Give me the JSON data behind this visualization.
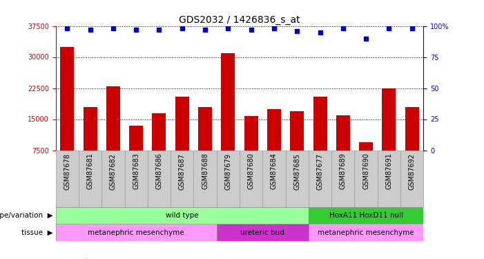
{
  "title": "GDS2032 / 1426836_s_at",
  "samples": [
    "GSM87678",
    "GSM87681",
    "GSM87682",
    "GSM87683",
    "GSM87686",
    "GSM87687",
    "GSM87688",
    "GSM87679",
    "GSM87680",
    "GSM87684",
    "GSM87685",
    "GSM87677",
    "GSM87689",
    "GSM87690",
    "GSM87691",
    "GSM87692"
  ],
  "counts": [
    32500,
    18000,
    23000,
    13500,
    16500,
    20500,
    18000,
    31000,
    15800,
    17500,
    17000,
    20500,
    16000,
    9500,
    22500,
    18000
  ],
  "percentile_ranks": [
    98,
    97,
    98,
    97,
    97,
    98,
    97,
    98,
    97,
    98,
    96,
    95,
    98,
    90,
    98,
    98
  ],
  "ylim_left": [
    7500,
    37500
  ],
  "ylim_right": [
    0,
    100
  ],
  "yticks_left": [
    7500,
    15000,
    22500,
    30000,
    37500
  ],
  "yticks_right": [
    0,
    25,
    50,
    75,
    100
  ],
  "bar_color": "#cc0000",
  "dot_color": "#0000cc",
  "left_axis_color": "#cc0000",
  "right_axis_color": "#0000cc",
  "genotype_groups": [
    {
      "label": "wild type",
      "start": 0,
      "end": 11,
      "color": "#99ff99"
    },
    {
      "label": "HoxA11 HoxD11 null",
      "start": 11,
      "end": 16,
      "color": "#33cc33"
    }
  ],
  "tissue_groups": [
    {
      "label": "metanephric mesenchyme",
      "start": 0,
      "end": 7,
      "color": "#ff99ff"
    },
    {
      "label": "ureteric bud",
      "start": 7,
      "end": 11,
      "color": "#cc33cc"
    },
    {
      "label": "metanephric mesenchyme",
      "start": 11,
      "end": 16,
      "color": "#ff99ff"
    }
  ],
  "title_fontsize": 10,
  "tick_fontsize": 7,
  "label_fontsize": 7.5,
  "annot_fontsize": 7.5
}
